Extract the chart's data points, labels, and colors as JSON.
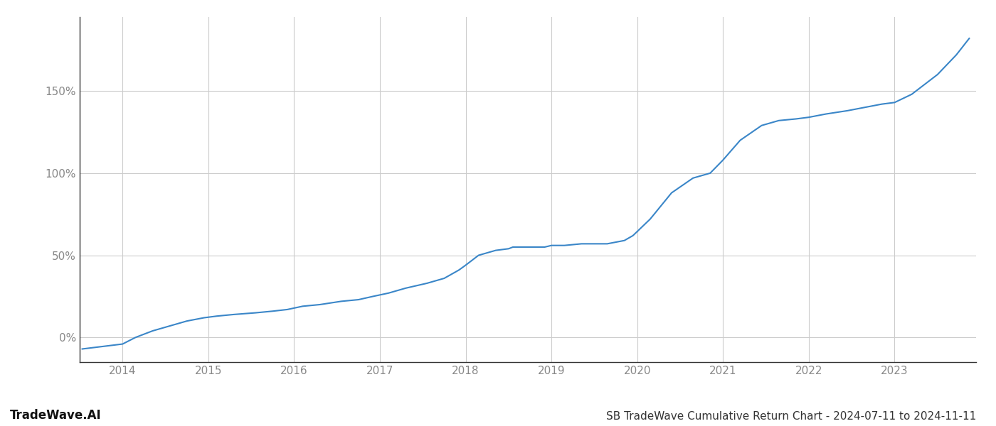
{
  "title": "SB TradeWave Cumulative Return Chart - 2024-07-11 to 2024-11-11",
  "watermark": "TradeWave.AI",
  "line_color": "#3a86c8",
  "background_color": "#ffffff",
  "grid_color": "#cccccc",
  "x_years": [
    2014,
    2015,
    2016,
    2017,
    2018,
    2019,
    2020,
    2021,
    2022,
    2023
  ],
  "data_x": [
    2013.53,
    2014.0,
    2014.15,
    2014.35,
    2014.55,
    2014.75,
    2014.95,
    2015.1,
    2015.3,
    2015.55,
    2015.75,
    2015.92,
    2016.1,
    2016.3,
    2016.55,
    2016.75,
    2016.92,
    2017.1,
    2017.3,
    2017.55,
    2017.75,
    2017.92,
    2018.0,
    2018.15,
    2018.35,
    2018.5,
    2018.55,
    2018.75,
    2018.92,
    2019.0,
    2019.15,
    2019.35,
    2019.45,
    2019.65,
    2019.85,
    2019.95,
    2020.15,
    2020.4,
    2020.65,
    2020.85,
    2021.0,
    2021.2,
    2021.45,
    2021.65,
    2021.85,
    2022.0,
    2022.2,
    2022.45,
    2022.65,
    2022.85,
    2023.0,
    2023.2,
    2023.5,
    2023.72,
    2023.87
  ],
  "data_y": [
    -7,
    -4,
    0,
    4,
    7,
    10,
    12,
    13,
    14,
    15,
    16,
    17,
    19,
    20,
    22,
    23,
    25,
    27,
    30,
    33,
    36,
    41,
    44,
    50,
    53,
    54,
    55,
    55,
    55,
    56,
    56,
    57,
    57,
    57,
    59,
    62,
    72,
    88,
    97,
    100,
    108,
    120,
    129,
    132,
    133,
    134,
    136,
    138,
    140,
    142,
    143,
    148,
    160,
    172,
    182
  ],
  "ylim": [
    -15,
    195
  ],
  "yticks": [
    0,
    50,
    100,
    150
  ],
  "ytick_labels": [
    "0%",
    "50%",
    "100%",
    "150%"
  ],
  "line_width": 1.5,
  "title_fontsize": 11,
  "tick_fontsize": 11,
  "watermark_fontsize": 12,
  "axis_color": "#888888",
  "spine_color": "#333333"
}
